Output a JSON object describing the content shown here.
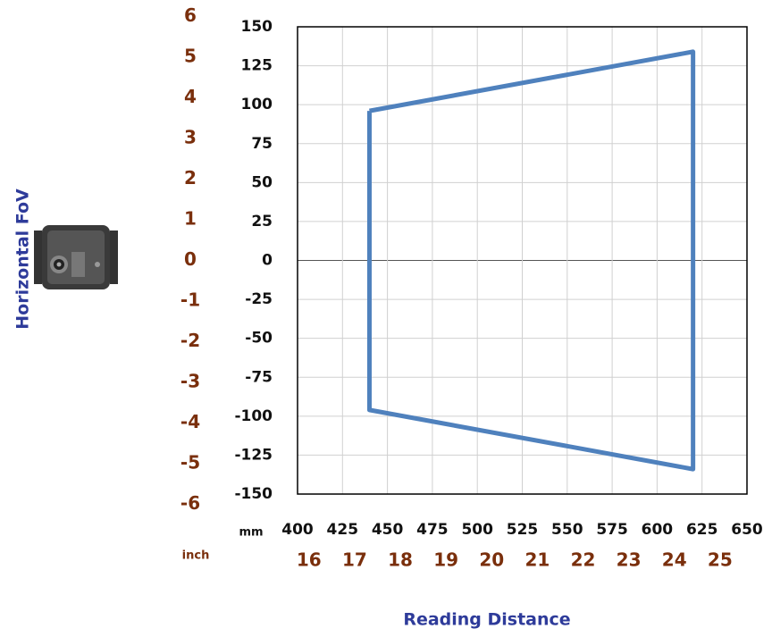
{
  "chart_data": {
    "type": "line",
    "x_label": "Reading Distance",
    "y_label": "Horizontal FoV",
    "x_unit": "mm",
    "x2_unit": "inch",
    "x": [
      440,
      620,
      620,
      440,
      440
    ],
    "series": [
      {
        "color": "#4f81bd",
        "values": [
          96,
          134,
          -134,
          -96,
          96
        ]
      }
    ],
    "xlim": [
      400,
      650
    ],
    "xticks": [
      400,
      425,
      450,
      475,
      500,
      525,
      550,
      575,
      600,
      625,
      650
    ],
    "ylim": [
      -150,
      150
    ],
    "yticks": [
      150,
      125,
      100,
      75,
      50,
      25,
      0,
      -25,
      -50,
      -75,
      -100,
      -125,
      -150
    ],
    "y2lim": [
      -5.75,
      5.75
    ],
    "y2ticks": [
      6,
      5,
      4,
      3,
      2,
      1,
      0,
      -1,
      -2,
      -3,
      -4,
      -5,
      -6
    ],
    "x2lim": [
      15.75,
      25.59
    ],
    "x2ticks": [
      16,
      17,
      18,
      19,
      20,
      21,
      22,
      23,
      24,
      25
    ],
    "grid": true
  }
}
